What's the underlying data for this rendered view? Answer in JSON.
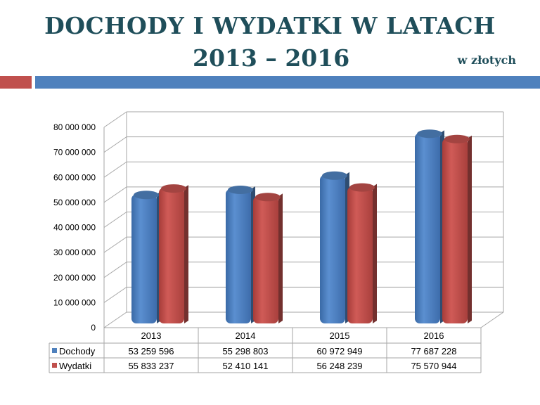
{
  "header": {
    "title_line1": "DOCHODY I WYDATKI W LATACH",
    "title_line2": "2013 – 2016",
    "unit": "w złotych"
  },
  "colors": {
    "title": "#1f4e5a",
    "accent_red": "#c0504d",
    "accent_blue": "#4f81bd"
  },
  "chart_data": {
    "type": "bar",
    "categories": [
      "2013",
      "2014",
      "2015",
      "2016"
    ],
    "series": [
      {
        "name": "Dochody",
        "values": [
          53259596,
          55298803,
          60972949,
          77687228
        ],
        "labels": [
          "53 259 596",
          "55 298 803",
          "60 972 949",
          "77 687 228"
        ],
        "color": "#4f81bd"
      },
      {
        "name": "Wydatki",
        "values": [
          55833237,
          52410141,
          56248239,
          75570944
        ],
        "labels": [
          "55 833 237",
          "52 410 141",
          "56 248 239",
          "75 570 944"
        ],
        "color": "#c0504d"
      }
    ],
    "ylim": [
      0,
      80000000
    ],
    "yticks": [
      "0",
      "10 000 000",
      "20 000 000",
      "30 000 000",
      "40 000 000",
      "50 000 000",
      "60 000 000",
      "70 000 000",
      "80 000 000"
    ],
    "grid": true,
    "legend": "data-table"
  }
}
